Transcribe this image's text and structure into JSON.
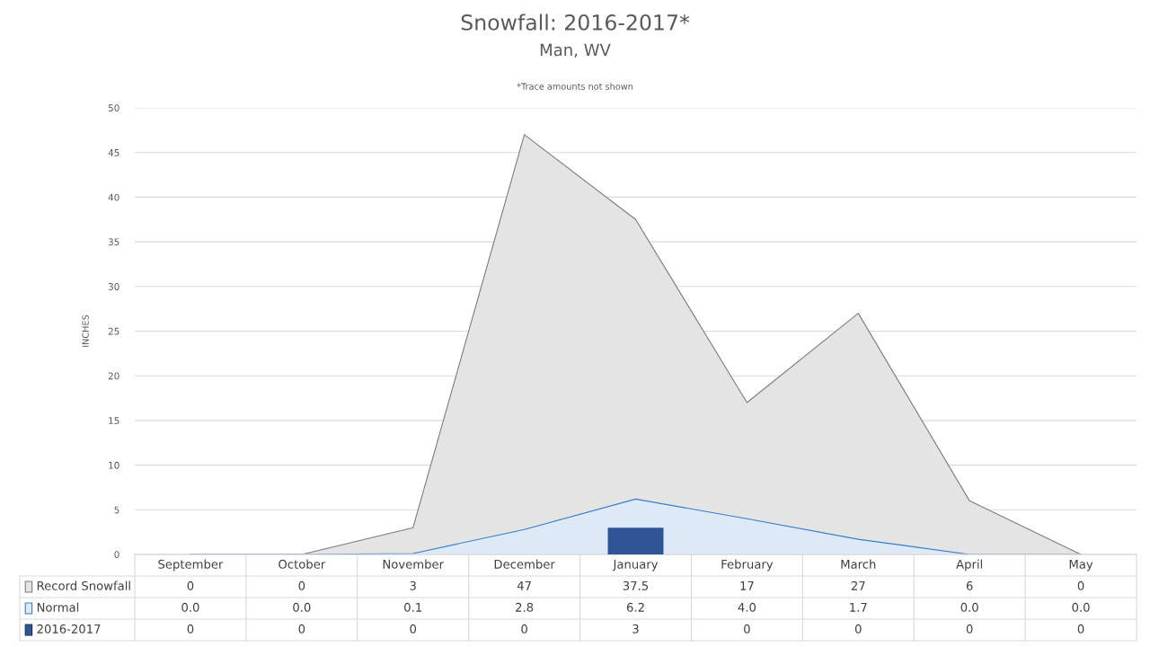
{
  "chart_data": {
    "type": "area",
    "title": "Snowfall: 2016-2017*",
    "subtitle": "Man, WV",
    "ylabel": "INCHES",
    "annotations": [
      "*Trace amounts not shown"
    ],
    "categories": [
      "September",
      "October",
      "November",
      "December",
      "January",
      "February",
      "March",
      "April",
      "May"
    ],
    "series": [
      {
        "name": "Record Snowfall",
        "color": "#e4e4e4",
        "values": [
          0,
          0,
          3,
          47,
          37.5,
          17,
          27,
          6,
          0
        ]
      },
      {
        "name": "Normal",
        "color": "#dde9f6",
        "values": [
          0.0,
          0.0,
          0.1,
          2.8,
          6.2,
          4.0,
          1.7,
          0.0,
          0.0
        ],
        "value_labels": [
          "0.0",
          "0.0",
          "0.1",
          "2.8",
          "6.2",
          "4.0",
          "1.7",
          "0.0",
          "0.0"
        ]
      },
      {
        "name": "2016-2017",
        "type": "bar",
        "color": "#2f5597",
        "values": [
          0,
          0,
          0,
          0,
          3,
          0,
          0,
          0,
          0
        ]
      }
    ],
    "ylim": [
      0,
      50
    ],
    "yticks": [
      0,
      5,
      10,
      15,
      20,
      25,
      30,
      35,
      40,
      45,
      50
    ],
    "grid": "y",
    "legend": "bottom",
    "data_labels": true
  }
}
